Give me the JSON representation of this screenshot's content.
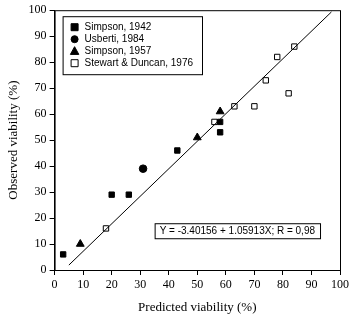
{
  "chart_data": {
    "type": "scatter",
    "x_label": "Predicted viability (%)",
    "y_label": "Observed viability (%)",
    "xlim": [
      0,
      100
    ],
    "xticks": [
      0,
      10,
      20,
      30,
      40,
      50,
      60,
      70,
      80,
      90,
      100
    ],
    "ylim": [
      0,
      100
    ],
    "yticks": [
      0,
      10,
      20,
      30,
      40,
      50,
      60,
      70,
      80,
      90,
      100
    ],
    "grid": false,
    "legend": "upper left",
    "series": [
      {
        "name": "Simpson, 1942",
        "color": "#000000",
        "marker": "square",
        "x": [
          3,
          20,
          26,
          43,
          58,
          58
        ],
        "values": [
          6,
          29,
          29,
          46,
          57,
          53
        ]
      },
      {
        "name": "Usberti, 1984",
        "color": "#000000",
        "marker": "circle",
        "x": [
          31
        ],
        "values": [
          39
        ]
      },
      {
        "name": "Simpson, 1957",
        "color": "#000000",
        "marker": "triangle",
        "x": [
          9,
          50,
          58
        ],
        "values": [
          10,
          51,
          61
        ]
      },
      {
        "name": "Stewart & Duncan, 1976",
        "color": "#000000",
        "marker": "square_open",
        "x": [
          18,
          56,
          63,
          70,
          74,
          78,
          82,
          84
        ],
        "values": [
          16,
          57,
          63,
          63,
          73,
          82,
          68,
          86
        ]
      }
    ],
    "regression": {
      "label": "Y = -3.40156 + 1.05913X; R = 0,98",
      "intercept": -3.40156,
      "slope": 1.05913,
      "x": [
        5,
        97
      ],
      "color": "#000000"
    }
  }
}
